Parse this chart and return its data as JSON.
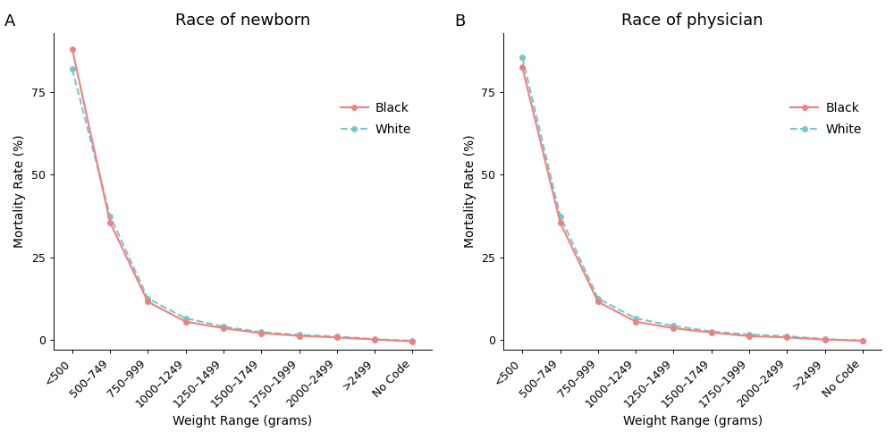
{
  "categories": [
    "<500",
    "500–749",
    "750–999",
    "1000–1249",
    "1250–1499",
    "1500–1749",
    "1750–1999",
    "2000–2499",
    ">2499",
    "No Code"
  ],
  "panel_A": {
    "title": "Race of newborn",
    "label": "A",
    "black": [
      88.0,
      35.5,
      11.5,
      5.5,
      3.5,
      2.0,
      1.2,
      0.7,
      0.1,
      -0.5
    ],
    "white": [
      82.0,
      37.5,
      12.5,
      6.5,
      4.0,
      2.3,
      1.5,
      1.0,
      0.2,
      -0.3
    ]
  },
  "panel_B": {
    "title": "Race of physician",
    "label": "B",
    "black": [
      82.5,
      35.5,
      11.5,
      5.5,
      3.5,
      2.2,
      1.1,
      0.7,
      0.1,
      -0.3
    ],
    "white": [
      85.5,
      37.5,
      12.5,
      6.5,
      4.2,
      2.5,
      1.6,
      1.1,
      0.2,
      -0.2
    ]
  },
  "color_black": "#F08080",
  "color_white": "#76C8C8",
  "xlabel": "Weight Range (grams)",
  "ylabel": "Mortality Rate (%)",
  "ylim": [
    -3,
    93
  ],
  "yticks": [
    0,
    25,
    50,
    75
  ],
  "background_color": "#FFFFFF",
  "line_width": 1.5,
  "marker_size": 4,
  "legend_labels": [
    "Black",
    "White"
  ],
  "title_fontsize": 13,
  "axis_label_fontsize": 10,
  "tick_fontsize": 9,
  "label_fontsize": 13
}
